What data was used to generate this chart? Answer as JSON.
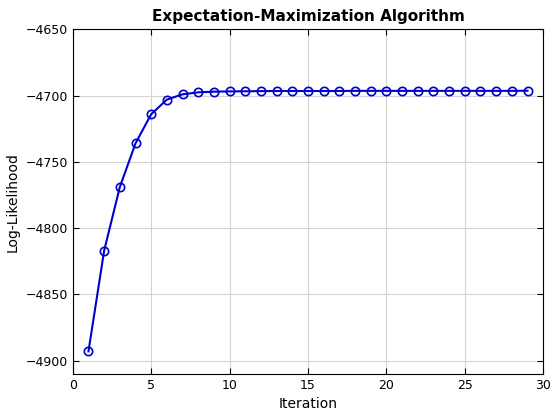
{
  "title": "Expectation-Maximization Algorithm",
  "xlabel": "Iteration",
  "ylabel": "Log-Likelihood",
  "xlim": [
    0,
    30
  ],
  "ylim": [
    -4910,
    -4650
  ],
  "xticks": [
    0,
    5,
    10,
    15,
    20,
    25,
    30
  ],
  "yticks": [
    -4900,
    -4850,
    -4800,
    -4750,
    -4700,
    -4650
  ],
  "line_color": "#0000CD",
  "marker": "o",
  "marker_facecolor": "none",
  "marker_edgecolor": "#0000CD",
  "background_color": "#ffffff",
  "grid_color": "#d3d3d3",
  "iterations": [
    1,
    2,
    3,
    4,
    5,
    6,
    7,
    8,
    9,
    10,
    11,
    12,
    13,
    14,
    15,
    16,
    17,
    18,
    19,
    20,
    21,
    22,
    23,
    24,
    25,
    26,
    27,
    28,
    29
  ],
  "log_likelihoods": [
    -4893,
    -4817,
    -4769,
    -4736,
    -4714,
    -4703,
    -4699,
    -4697.5,
    -4697,
    -4696.8,
    -4696.7,
    -4696.6,
    -4696.5,
    -4696.5,
    -4696.5,
    -4696.5,
    -4696.5,
    -4696.4,
    -4696.4,
    -4696.4,
    -4696.4,
    -4696.4,
    -4696.4,
    -4696.4,
    -4696.4,
    -4696.4,
    -4696.4,
    -4696.4,
    -4696.3
  ]
}
